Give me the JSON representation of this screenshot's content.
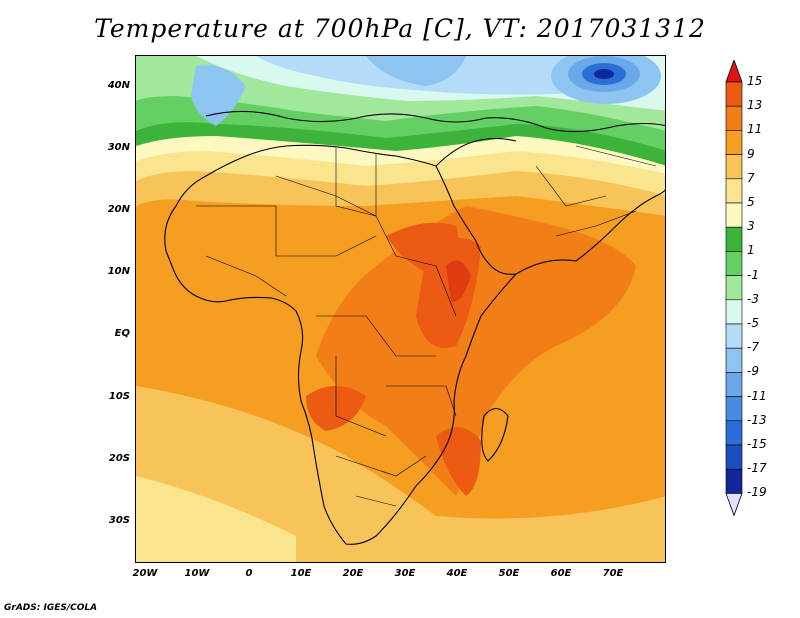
{
  "title": "Temperature at 700hPa [C], VT: 2017031312",
  "credit": "GrADS: IGES/COLA",
  "lat_labels": [
    "40N",
    "30N",
    "20N",
    "10N",
    "EQ",
    "10S",
    "20S",
    "30S"
  ],
  "lon_labels": [
    "20W",
    "10W",
    "0",
    "10E",
    "20E",
    "30E",
    "40E",
    "50E",
    "60E",
    "70E"
  ],
  "colorbar": {
    "labels": [
      "15",
      "13",
      "11",
      "9",
      "7",
      "5",
      "3",
      "1",
      "-1",
      "-3",
      "-5",
      "-7",
      "-9",
      "-11",
      "-13",
      "-15",
      "-17",
      "-19"
    ],
    "colors": [
      "#e03c12",
      "#ec5a14",
      "#f27e18",
      "#f59e22",
      "#f8c45a",
      "#fbe48e",
      "#fdf8c0",
      "#3cb43c",
      "#64d064",
      "#a2e89c",
      "#d8f8f0",
      "#b4dcf8",
      "#8ec4f2",
      "#6aa8ea",
      "#468ce2",
      "#2c6ed8",
      "#1c4fbe",
      "#10289a",
      "#0a0a6e"
    ],
    "top_arrow_color": "#e01414",
    "bottom_arrow_color": "#e0e0ff"
  }
}
